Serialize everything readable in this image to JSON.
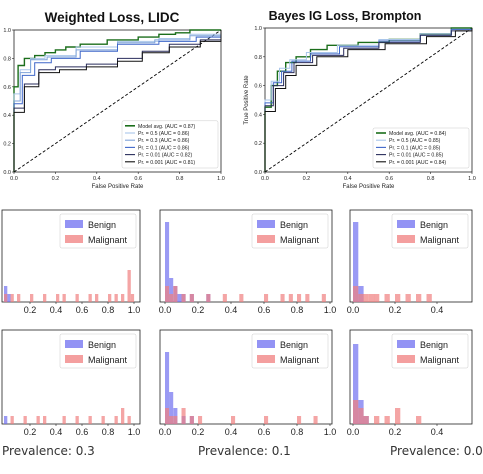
{
  "colors": {
    "model_avg": "#1b6e1b",
    "p05": "#a9c6ea",
    "p03": "#7fa3d9",
    "p01": "#3f67c9",
    "p001_lidc": "#2a2d5c",
    "p0001": "#111111",
    "benign": "#6f6ff0",
    "malignant": "#f07f7f",
    "chance": "#000000"
  },
  "chart_data": [
    {
      "type": "line",
      "title": "Weighted Loss, LIDC",
      "xlabel": "False Positive Rate",
      "ylabel": "",
      "xlim": [
        0,
        1
      ],
      "ylim": [
        0,
        1
      ],
      "xticks": [
        "0.0",
        "0.2",
        "0.4",
        "0.6",
        "0.8",
        "1.0"
      ],
      "yticks": [
        "0.0",
        "0.2",
        "0.4",
        "0.6",
        "0.8",
        "1.0"
      ],
      "legend_position": "lower-right",
      "series": [
        {
          "name": "Model avg. (AUC = 0.87)",
          "color_key": "model_avg",
          "x": [
            0,
            0,
            0.02,
            0.05,
            0.1,
            0.15,
            0.2,
            0.25,
            0.32,
            0.45,
            0.6,
            0.7,
            0.78,
            0.85,
            1.0
          ],
          "y": [
            0,
            0.6,
            0.75,
            0.8,
            0.82,
            0.84,
            0.86,
            0.88,
            0.9,
            0.93,
            0.95,
            0.97,
            0.98,
            1.0,
            1.0
          ]
        },
        {
          "name": "Pr. = 0.5 (AUC = 0.86)",
          "color_key": "p05",
          "x": [
            0,
            0,
            0.03,
            0.08,
            0.15,
            0.3,
            0.5,
            0.7,
            0.85,
            1.0
          ],
          "y": [
            0,
            0.55,
            0.72,
            0.8,
            0.82,
            0.88,
            0.92,
            0.94,
            0.97,
            1.0
          ]
        },
        {
          "name": "Pr. = 0.3 (AUC = 0.86)",
          "color_key": "p03",
          "x": [
            0,
            0,
            0.03,
            0.08,
            0.16,
            0.3,
            0.5,
            0.68,
            0.85,
            1.0
          ],
          "y": [
            0,
            0.5,
            0.7,
            0.79,
            0.81,
            0.86,
            0.91,
            0.93,
            0.96,
            1.0
          ]
        },
        {
          "name": "Pr. = 0.1 (AUC = 0.86)",
          "color_key": "p01",
          "x": [
            0,
            0,
            0.04,
            0.1,
            0.18,
            0.32,
            0.5,
            0.7,
            0.88,
            1.0
          ],
          "y": [
            0,
            0.48,
            0.68,
            0.77,
            0.8,
            0.85,
            0.9,
            0.92,
            0.95,
            1.0
          ]
        },
        {
          "name": "Pr. = 0.01 (AUC = 0.82)",
          "color_key": "p001_lidc",
          "x": [
            0,
            0,
            0.05,
            0.12,
            0.2,
            0.35,
            0.5,
            0.62,
            0.75,
            0.9,
            1.0
          ],
          "y": [
            0,
            0.45,
            0.62,
            0.72,
            0.74,
            0.76,
            0.8,
            0.85,
            0.9,
            0.93,
            1.0
          ]
        },
        {
          "name": "Pr. = 0.001 (AUC = 0.81)",
          "color_key": "p0001",
          "x": [
            0,
            0,
            0.05,
            0.12,
            0.22,
            0.35,
            0.5,
            0.62,
            0.75,
            0.9,
            1.0
          ],
          "y": [
            0,
            0.42,
            0.6,
            0.7,
            0.72,
            0.74,
            0.78,
            0.84,
            0.88,
            0.92,
            1.0
          ]
        }
      ]
    },
    {
      "type": "line",
      "title": "Bayes IG Loss, Brompton",
      "xlabel": "False Positive Rate",
      "ylabel": "True Positive Rate",
      "xlim": [
        0,
        1
      ],
      "ylim": [
        0,
        1
      ],
      "xticks": [
        "0.0",
        "0.2",
        "0.4",
        "0.6",
        "0.8",
        "1.0"
      ],
      "yticks": [
        "0.0",
        "0.2",
        "0.4",
        "0.6",
        "0.8",
        "1.0"
      ],
      "legend_position": "lower-right",
      "series": [
        {
          "name": "Model avg. (AUC = 0.84)",
          "color_key": "model_avg",
          "x": [
            0,
            0,
            0.03,
            0.06,
            0.1,
            0.15,
            0.22,
            0.3,
            0.45,
            0.6,
            0.75,
            0.9,
            1.0
          ],
          "y": [
            0,
            0.45,
            0.6,
            0.7,
            0.76,
            0.8,
            0.85,
            0.88,
            0.9,
            0.92,
            0.96,
            1.0,
            1.0
          ]
        },
        {
          "name": "Pr. = 0.5 (AUC = 0.85)",
          "color_key": "p05",
          "x": [
            0,
            0,
            0.03,
            0.07,
            0.12,
            0.2,
            0.35,
            0.55,
            0.75,
            0.9,
            1.0
          ],
          "y": [
            0,
            0.5,
            0.63,
            0.72,
            0.78,
            0.83,
            0.88,
            0.92,
            0.96,
            0.99,
            1.0
          ]
        },
        {
          "name": "Pr. = 0.1 (AUC = 0.85)",
          "color_key": "p01",
          "x": [
            0,
            0,
            0.04,
            0.08,
            0.13,
            0.22,
            0.36,
            0.55,
            0.75,
            0.9,
            1.0
          ],
          "y": [
            0,
            0.48,
            0.62,
            0.7,
            0.77,
            0.82,
            0.87,
            0.91,
            0.95,
            0.99,
            1.0
          ]
        },
        {
          "name": "Pr. = 0.01 (AUC = 0.85)",
          "color_key": "p001_lidc",
          "x": [
            0,
            0,
            0.04,
            0.09,
            0.14,
            0.23,
            0.38,
            0.55,
            0.75,
            0.9,
            1.0
          ],
          "y": [
            0,
            0.46,
            0.6,
            0.69,
            0.76,
            0.81,
            0.86,
            0.9,
            0.95,
            0.98,
            1.0
          ]
        },
        {
          "name": "Pr. = 0.001 (AUC = 0.84)",
          "color_key": "p0001",
          "x": [
            0,
            0,
            0.05,
            0.1,
            0.15,
            0.25,
            0.4,
            0.58,
            0.78,
            0.92,
            1.0
          ],
          "y": [
            0,
            0.42,
            0.58,
            0.67,
            0.74,
            0.8,
            0.85,
            0.89,
            0.94,
            0.98,
            1.0
          ]
        }
      ]
    },
    {
      "type": "bar",
      "title": "",
      "xlim": [
        0,
        1
      ],
      "xticks": [
        "0.2",
        "0.4",
        "0.6",
        "0.8",
        "1.0"
      ],
      "legend": [
        "Benign",
        "Malignant"
      ],
      "bin_width": 0.025,
      "series": [
        {
          "name": "Benign",
          "color_key": "benign",
          "x": [
            0.0,
            0.025
          ],
          "values": [
            2,
            1
          ]
        },
        {
          "name": "Malignant",
          "color_key": "malignant",
          "x": [
            0.0,
            0.05,
            0.1,
            0.2,
            0.3,
            0.4,
            0.45,
            0.55,
            0.65,
            0.7,
            0.8,
            0.85,
            0.9,
            0.95,
            0.975
          ],
          "values": [
            1,
            1,
            1,
            1,
            1,
            1,
            1,
            1,
            1,
            1,
            1,
            1,
            1,
            4,
            1
          ]
        }
      ]
    },
    {
      "type": "bar",
      "title": "",
      "xlim": [
        0,
        1
      ],
      "xticks": [
        "0.0",
        "0.2",
        "0.4",
        "0.6",
        "0.8",
        "1.0"
      ],
      "legend": [
        "Benign",
        "Malignant"
      ],
      "bin_width": 0.025,
      "series": [
        {
          "name": "Benign",
          "color_key": "benign",
          "x": [
            0.0,
            0.025,
            0.05,
            0.075,
            0.1,
            0.15,
            0.25
          ],
          "values": [
            10,
            3,
            2,
            1,
            1,
            1,
            1
          ]
        },
        {
          "name": "Malignant",
          "color_key": "malignant",
          "x": [
            0.0,
            0.025,
            0.05,
            0.1,
            0.15,
            0.25,
            0.35,
            0.45,
            0.6,
            0.7,
            0.75,
            0.8,
            0.85,
            0.95
          ],
          "values": [
            2,
            1,
            2,
            1,
            1,
            1,
            1,
            1,
            1,
            1,
            1,
            1,
            1,
            1
          ]
        }
      ]
    },
    {
      "type": "bar",
      "title": "",
      "xlim": [
        0,
        1
      ],
      "xticks": [
        "0.0",
        "0.2",
        "0.4"
      ],
      "legend": [
        "Benign",
        "Malignant"
      ],
      "bin_width": 0.025,
      "series": [
        {
          "name": "Benign",
          "color_key": "benign",
          "x": [
            0.0,
            0.025
          ],
          "values": [
            10,
            2
          ]
        },
        {
          "name": "Malignant",
          "color_key": "malignant",
          "x": [
            0.0,
            0.025,
            0.05,
            0.075,
            0.1,
            0.15,
            0.2,
            0.25,
            0.3,
            0.35
          ],
          "values": [
            2,
            1,
            1,
            1,
            1,
            1,
            1,
            1,
            1,
            1
          ]
        }
      ]
    },
    {
      "type": "bar",
      "title": "",
      "xlim": [
        0,
        1
      ],
      "xticks": [
        "0.2",
        "0.4",
        "0.6",
        "0.8",
        "1.0"
      ],
      "legend": [
        "Benign",
        "Malignant"
      ],
      "bin_width": 0.025,
      "series": [
        {
          "name": "Benign",
          "color_key": "benign",
          "x": [
            0.0
          ],
          "values": [
            1
          ]
        },
        {
          "name": "Malignant",
          "color_key": "malignant",
          "x": [
            0.05,
            0.15,
            0.25,
            0.3,
            0.45,
            0.55,
            0.65,
            0.75,
            0.85,
            0.9,
            0.95
          ],
          "values": [
            1,
            1,
            1,
            1,
            1,
            1,
            1,
            1,
            1,
            2,
            1
          ]
        }
      ]
    },
    {
      "type": "bar",
      "title": "",
      "xlim": [
        0,
        1
      ],
      "xticks": [
        "0.0",
        "0.2",
        "0.4",
        "0.6",
        "0.8",
        "1.0"
      ],
      "legend": [
        "Benign",
        "Malignant"
      ],
      "bin_width": 0.025,
      "series": [
        {
          "name": "Benign",
          "color_key": "benign",
          "x": [
            0.0,
            0.025,
            0.05,
            0.1,
            0.15
          ],
          "values": [
            9,
            4,
            2,
            1,
            1
          ]
        },
        {
          "name": "Malignant",
          "color_key": "malignant",
          "x": [
            0.0,
            0.025,
            0.05,
            0.1,
            0.15,
            0.2,
            0.4,
            0.6,
            0.8,
            0.9
          ],
          "values": [
            2,
            1,
            1,
            2,
            1,
            1,
            1,
            1,
            1,
            1
          ]
        }
      ]
    },
    {
      "type": "bar",
      "title": "",
      "xlim": [
        0,
        1
      ],
      "xticks": [
        "0.0",
        "0.2",
        "0.4"
      ],
      "legend": [
        "Benign",
        "Malignant"
      ],
      "bin_width": 0.025,
      "series": [
        {
          "name": "Benign",
          "color_key": "benign",
          "x": [
            0.0,
            0.025,
            0.05
          ],
          "values": [
            10,
            3,
            1
          ]
        },
        {
          "name": "Malignant",
          "color_key": "malignant",
          "x": [
            0.0,
            0.025,
            0.05,
            0.1,
            0.15,
            0.2,
            0.3
          ],
          "values": [
            3,
            2,
            1,
            1,
            1,
            2,
            1
          ]
        }
      ]
    }
  ],
  "captions": {
    "col1": "Prevalence: 0.3",
    "col2": "Prevalence: 0.1",
    "col3": "Prevalence: 0.0"
  }
}
